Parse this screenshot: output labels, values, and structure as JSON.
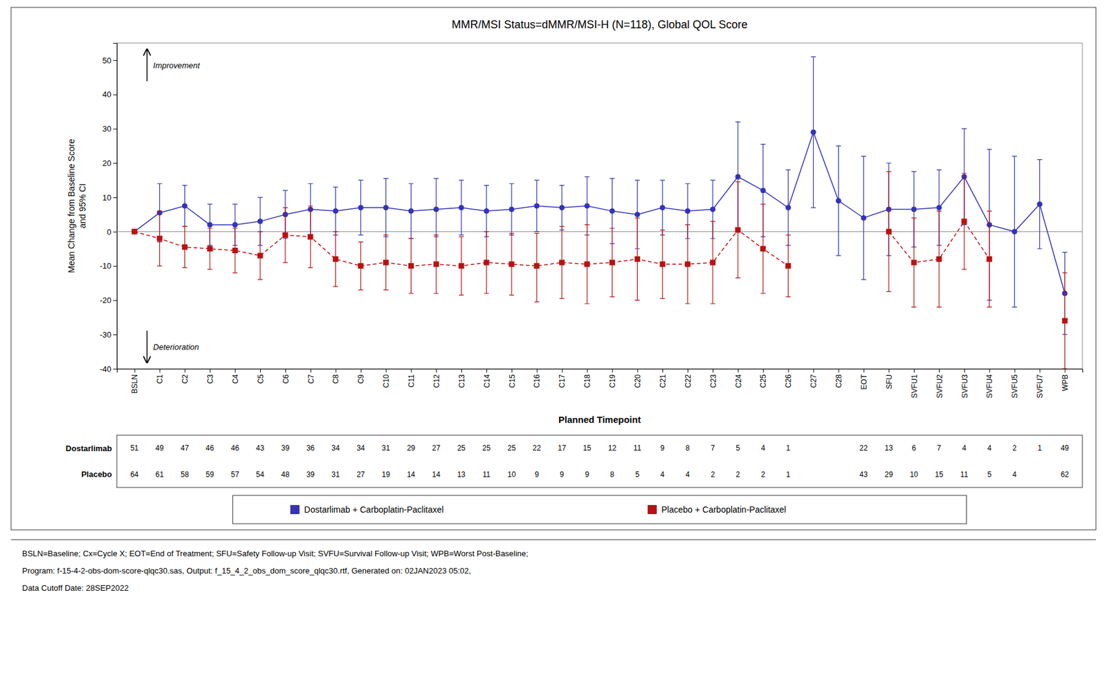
{
  "chart_data": {
    "type": "line",
    "title": "MMR/MSI Status=dMMR/MSI-H (N=118), Global QOL Score",
    "x_label": "Planned Timepoint",
    "y_label": "Mean Change from Baseline Score\nand 95% CI",
    "categories": [
      "BSLN",
      "C1",
      "C2",
      "C3",
      "C4",
      "C5",
      "C6",
      "C7",
      "C8",
      "C9",
      "C10",
      "C11",
      "C12",
      "C13",
      "C14",
      "C15",
      "C16",
      "C17",
      "C18",
      "C19",
      "C20",
      "C21",
      "C22",
      "C23",
      "C24",
      "C25",
      "C26",
      "C27",
      "C28",
      "EOT",
      "SFU",
      "SVFU1",
      "SVFU2",
      "SVFU3",
      "SVFU4",
      "SVFU5",
      "SVFU7",
      "WPB"
    ],
    "series": [
      {
        "name": "Dostarlimab + Carboplatin-Paclitaxel",
        "color": "#3333bb",
        "marker": "circle",
        "line_style": "solid",
        "values": [
          0.0,
          5.5,
          7.5,
          2.0,
          2.0,
          3.0,
          5.0,
          6.5,
          6.0,
          7.0,
          7.0,
          6.0,
          6.5,
          7.0,
          6.0,
          6.5,
          7.5,
          7.0,
          7.5,
          6.0,
          5.0,
          7.0,
          6.0,
          6.5,
          16.0,
          12.0,
          7.0,
          29.0,
          9.0,
          4.0,
          6.5,
          6.5,
          7.0,
          16.0,
          2.0,
          0.0,
          8.0,
          -18.0
        ],
        "ci_low": [
          0.0,
          -3.0,
          1.5,
          -4.0,
          -4.0,
          -4.0,
          -2.0,
          -1.0,
          -1.0,
          -1.0,
          -1.5,
          -2.0,
          -1.5,
          -1.0,
          -1.5,
          -1.0,
          0.0,
          0.5,
          -1.0,
          -3.5,
          -5.0,
          -1.0,
          -2.0,
          -2.0,
          0.0,
          -1.5,
          -4.0,
          7.0,
          -7.0,
          -14.0,
          -7.0,
          -4.5,
          -4.0,
          2.0,
          -20.0,
          -22.0,
          -5.0,
          -30.0
        ],
        "ci_high": [
          0.0,
          14.0,
          13.5,
          8.0,
          8.0,
          10.0,
          12.0,
          14.0,
          13.0,
          15.0,
          15.5,
          14.0,
          15.5,
          15.0,
          13.5,
          14.0,
          15.0,
          13.5,
          16.0,
          15.5,
          15.0,
          15.0,
          14.0,
          15.0,
          32.0,
          25.5,
          18.0,
          51.0,
          25.0,
          22.0,
          20.0,
          17.5,
          18.0,
          30.0,
          24.0,
          22.0,
          21.0,
          -6.0
        ]
      },
      {
        "name": "Placebo + Carboplatin-Paclitaxel",
        "color": "#bb1111",
        "marker": "square",
        "line_style": "dashed",
        "values": [
          0.0,
          -2.0,
          -4.5,
          -5.0,
          -5.5,
          -7.0,
          -1.0,
          -1.5,
          -8.0,
          -10.0,
          -9.0,
          -10.0,
          -9.5,
          -10.0,
          -9.0,
          -9.5,
          -10.0,
          -9.0,
          -9.5,
          -9.0,
          -8.0,
          -9.5,
          -9.5,
          -9.0,
          0.5,
          -5.0,
          -10.0,
          null,
          null,
          null,
          0.0,
          -9.0,
          -8.0,
          3.0,
          -8.0,
          null,
          null,
          -26.0
        ],
        "ci_low": [
          0.0,
          -10.0,
          -10.5,
          -11.0,
          -12.0,
          -14.0,
          -9.0,
          -10.5,
          -16.0,
          -17.0,
          -17.0,
          -18.0,
          -18.0,
          -18.5,
          -18.0,
          -18.5,
          -20.5,
          -19.5,
          -21.0,
          -19.0,
          -20.0,
          -19.5,
          -21.0,
          -21.0,
          -13.5,
          -18.0,
          -19.0,
          null,
          null,
          null,
          -17.5,
          -22.0,
          -22.0,
          -11.0,
          -22.0,
          null,
          null,
          -40.0
        ],
        "ci_high": [
          0.0,
          6.0,
          1.5,
          1.0,
          1.0,
          0.0,
          7.0,
          7.5,
          0.0,
          -3.0,
          -1.0,
          -2.0,
          -1.0,
          -1.5,
          0.0,
          -0.5,
          -0.5,
          1.5,
          2.0,
          1.0,
          4.0,
          0.5,
          2.0,
          3.0,
          14.5,
          8.0,
          -1.0,
          null,
          null,
          null,
          17.5,
          4.0,
          6.0,
          17.0,
          6.0,
          null,
          null,
          -12.0
        ]
      }
    ],
    "ylim": [
      -40,
      55
    ],
    "yticks": [
      -40,
      -30,
      -20,
      -10,
      0,
      10,
      20,
      30,
      40,
      50
    ],
    "grid": false,
    "reference_line": 0,
    "annotations": [
      {
        "text": "Improvement"
      },
      {
        "text": "Deterioration"
      }
    ],
    "n_table": {
      "rows": [
        {
          "label": "Dostarlimab",
          "values": [
            51,
            49,
            47,
            46,
            46,
            43,
            39,
            36,
            34,
            34,
            31,
            29,
            27,
            25,
            25,
            25,
            22,
            17,
            15,
            12,
            11,
            9,
            8,
            7,
            5,
            4,
            1,
            null,
            null,
            22,
            13,
            6,
            7,
            4,
            4,
            2,
            1,
            49
          ]
        },
        {
          "label": "Placebo",
          "values": [
            64,
            61,
            58,
            59,
            57,
            54,
            48,
            39,
            31,
            27,
            19,
            14,
            14,
            13,
            11,
            10,
            9,
            9,
            9,
            8,
            5,
            4,
            4,
            2,
            2,
            2,
            1,
            null,
            null,
            43,
            29,
            10,
            15,
            11,
            5,
            4,
            null,
            62
          ]
        }
      ]
    },
    "footnotes": [
      "BSLN=Baseline; Cx=Cycle X; EOT=End of Treatment; SFU=Safety Follow-up Visit; SVFU=Survival Follow-up Visit; WPB=Worst Post-Baseline;",
      "Program: f-15-4-2-obs-dom-score-qlqc30.sas, Output: f_15_4_2_obs_dom_score_qlqc30.rtf, Generated on: 02JAN2023 05:02,",
      "Data Cutoff Date: 28SEP2022"
    ]
  }
}
